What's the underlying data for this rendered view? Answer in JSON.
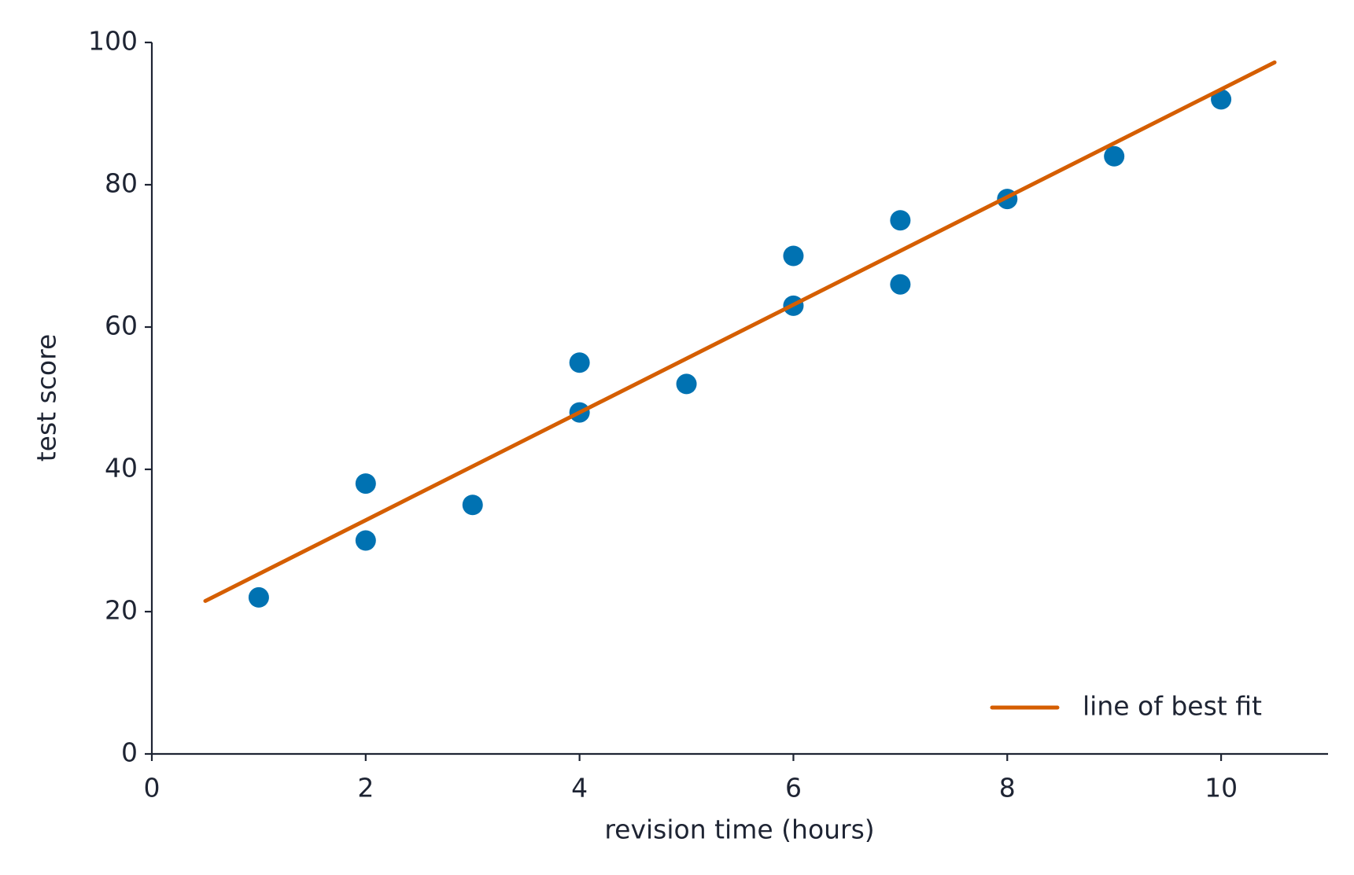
{
  "chart_data": {
    "type": "scatter",
    "x_label": "revision time (hours)",
    "y_label": "test score",
    "xlim": [
      0,
      11
    ],
    "xticks": [
      0,
      2,
      4,
      6,
      8,
      10
    ],
    "ylim": [
      0,
      100
    ],
    "yticks": [
      0,
      20,
      40,
      60,
      80,
      100
    ],
    "grid": false,
    "legend_position": "lower right",
    "series": [
      {
        "type": "scatter",
        "color": "#0072b2",
        "x": [
          1,
          2,
          2,
          3,
          4,
          4,
          5,
          6,
          6,
          7,
          7,
          8,
          9,
          10
        ],
        "values": [
          22,
          38,
          30,
          35,
          55,
          48,
          52,
          70,
          63,
          75,
          66,
          78,
          84,
          92
        ]
      },
      {
        "type": "line",
        "name": "line of best fit",
        "color": "#d55e00",
        "x": [
          0.5,
          10.5
        ],
        "values": [
          21.5,
          97.2
        ]
      }
    ]
  }
}
